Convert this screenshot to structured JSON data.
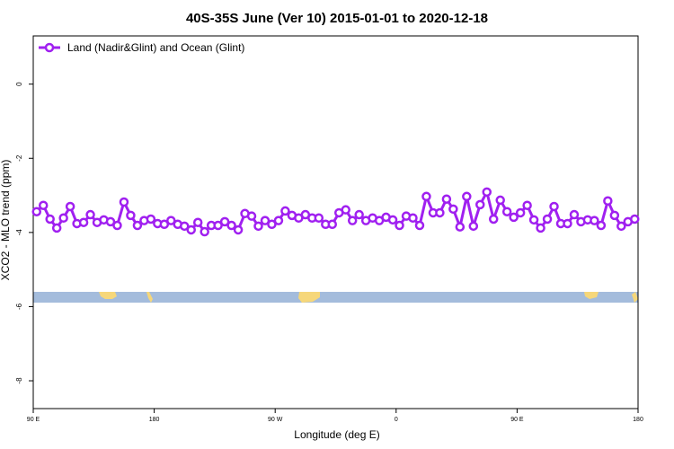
{
  "chart_data": {
    "type": "line",
    "title": "40S-35S June (Ver 10)   2015-01-01 to 2020-12-18",
    "x_label": "Longitude (deg E)",
    "y_label": "XCO2 - MLO trend (ppm)",
    "x": [
      92.5,
      97.5,
      102.5,
      107.5,
      112.5,
      117.5,
      122.5,
      127.5,
      132.5,
      137.5,
      142.5,
      147.5,
      152.5,
      157.5,
      162.5,
      167.5,
      172.5,
      177.5,
      182.5,
      187.5,
      192.5,
      197.5,
      202.5,
      207.5,
      212.5,
      217.5,
      222.5,
      227.5,
      232.5,
      237.5,
      242.5,
      247.5,
      252.5,
      257.5,
      262.5,
      267.5,
      272.5,
      277.5,
      282.5,
      287.5,
      292.5,
      297.5,
      302.5,
      307.5,
      312.5,
      317.5,
      322.5,
      327.5,
      332.5,
      337.5,
      342.5,
      347.5,
      352.5,
      357.5,
      362.5,
      367.5,
      372.5,
      377.5,
      382.5,
      387.5,
      392.5,
      397.5,
      402.5,
      407.5,
      412.5,
      417.5,
      422.5,
      427.5,
      432.5,
      437.5,
      442.5,
      447.5,
      452.5,
      457.5,
      462.5,
      467.5,
      472.5,
      477.5,
      482.5,
      487.5,
      492.5,
      497.5,
      502.5,
      507.5,
      512.5,
      517.5,
      522.5,
      527.5,
      532.5,
      537.5
    ],
    "series": [
      {
        "name": "Land (Nadir&Glint) and Ocean (Glint)",
        "color": "#a020f0",
        "values": [
          -3.44,
          -3.27,
          -3.64,
          -3.88,
          -3.61,
          -3.3,
          -3.76,
          -3.73,
          -3.52,
          -3.73,
          -3.66,
          -3.71,
          -3.81,
          -3.18,
          -3.54,
          -3.81,
          -3.68,
          -3.64,
          -3.76,
          -3.78,
          -3.68,
          -3.78,
          -3.83,
          -3.93,
          -3.73,
          -3.98,
          -3.81,
          -3.81,
          -3.71,
          -3.81,
          -3.93,
          -3.49,
          -3.56,
          -3.83,
          -3.68,
          -3.78,
          -3.68,
          -3.42,
          -3.54,
          -3.61,
          -3.52,
          -3.61,
          -3.61,
          -3.78,
          -3.78,
          -3.47,
          -3.39,
          -3.68,
          -3.52,
          -3.68,
          -3.61,
          -3.68,
          -3.59,
          -3.66,
          -3.81,
          -3.56,
          -3.61,
          -3.81,
          -3.03,
          -3.47,
          -3.47,
          -3.1,
          -3.37,
          -3.85,
          -3.03,
          -3.83,
          -3.25,
          -2.91,
          -3.64,
          -3.13,
          -3.44,
          -3.59,
          -3.47,
          -3.27,
          -3.66,
          -3.88,
          -3.64,
          -3.3,
          -3.76,
          -3.76,
          -3.52,
          -3.71,
          -3.66,
          -3.68,
          -3.81,
          -3.15,
          -3.54,
          -3.83,
          -3.71,
          -3.64
        ]
      }
    ],
    "xlim": [
      90,
      540
    ],
    "xticks": [
      {
        "value": 90,
        "label": "90 E"
      },
      {
        "value": 180,
        "label": "180"
      },
      {
        "value": 270,
        "label": "90 W"
      },
      {
        "value": 360,
        "label": "0"
      },
      {
        "value": 450,
        "label": "90 E"
      },
      {
        "value": 540,
        "label": "180"
      }
    ],
    "ylim": [
      -8.75,
      1.3
    ],
    "yticks": [
      0,
      -2,
      -4,
      -6,
      -8
    ],
    "legend": "top-left"
  }
}
